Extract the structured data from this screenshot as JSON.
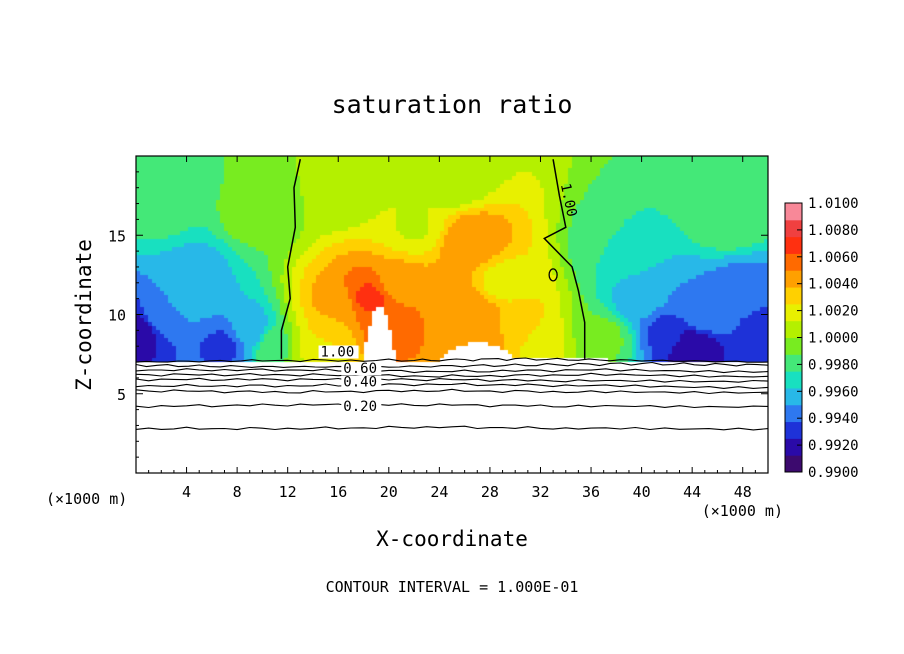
{
  "chart_data": {
    "type": "heatmap",
    "title": "saturation ratio",
    "xlabel": "X-coordinate",
    "ylabel": "Z-coordinate",
    "x_unit_left": "(×1000 m)",
    "x_unit_right": "(×1000 m)",
    "footer": "CONTOUR INTERVAL = 1.000E-01",
    "xlim": [
      0,
      50
    ],
    "ylim": [
      0,
      20
    ],
    "x_ticks": [
      4,
      8,
      12,
      16,
      20,
      24,
      28,
      32,
      36,
      40,
      44,
      48
    ],
    "y_ticks": [
      5,
      10,
      15
    ],
    "colorbar": {
      "range": [
        0.99,
        1.01
      ],
      "labels": [
        "1.0100",
        "1.0080",
        "1.0060",
        "1.0040",
        "1.0020",
        "1.0000",
        "0.9980",
        "0.9960",
        "0.9940",
        "0.9920",
        "0.9900"
      ],
      "colors": [
        "#3c0a6e",
        "#2a0aa8",
        "#1e32d8",
        "#2e78f0",
        "#28b8e8",
        "#18e0c0",
        "#44e878",
        "#78ec20",
        "#b4f000",
        "#e8f000",
        "#ffd000",
        "#ffa000",
        "#ff6a00",
        "#ff3010",
        "#f04040",
        "#f88898"
      ]
    },
    "contour_labels": [
      "1.00",
      "0.60",
      "0.40",
      "0.20"
    ],
    "contour_lines": [
      {
        "level": 1.0,
        "points": [
          [
            0,
            7.0
          ],
          [
            10,
            7.1
          ],
          [
            22,
            7.1
          ],
          [
            30,
            7.2
          ],
          [
            40,
            7.1
          ],
          [
            50,
            7.0
          ]
        ]
      },
      {
        "level": 0.9,
        "points": [
          [
            0,
            6.8
          ],
          [
            10,
            6.7
          ],
          [
            20,
            6.7
          ],
          [
            30,
            6.8
          ],
          [
            40,
            6.9
          ],
          [
            50,
            6.8
          ]
        ]
      },
      {
        "level": 0.8,
        "points": [
          [
            0,
            6.5
          ],
          [
            12,
            6.5
          ],
          [
            24,
            6.4
          ],
          [
            36,
            6.5
          ],
          [
            50,
            6.4
          ]
        ]
      },
      {
        "level": 0.7,
        "points": [
          [
            0,
            6.2
          ],
          [
            12,
            6.2
          ],
          [
            24,
            6.1
          ],
          [
            36,
            6.2
          ],
          [
            50,
            6.1
          ]
        ]
      },
      {
        "level": 0.6,
        "points": [
          [
            0,
            5.9
          ],
          [
            12,
            5.9
          ],
          [
            24,
            5.9
          ],
          [
            36,
            5.8
          ],
          [
            50,
            5.8
          ]
        ]
      },
      {
        "level": 0.5,
        "points": [
          [
            0,
            5.5
          ],
          [
            12,
            5.5
          ],
          [
            24,
            5.6
          ],
          [
            36,
            5.5
          ],
          [
            50,
            5.4
          ]
        ]
      },
      {
        "level": 0.4,
        "points": [
          [
            0,
            5.2
          ],
          [
            12,
            5.1
          ],
          [
            24,
            5.2
          ],
          [
            36,
            5.1
          ],
          [
            50,
            5.1
          ]
        ]
      },
      {
        "level": 0.3,
        "points": [
          [
            0,
            4.2
          ],
          [
            12,
            4.3
          ],
          [
            24,
            4.3
          ],
          [
            36,
            4.2
          ],
          [
            50,
            4.2
          ]
        ]
      },
      {
        "level": 0.2,
        "points": [
          [
            0,
            2.8
          ],
          [
            12,
            2.8
          ],
          [
            24,
            2.9
          ],
          [
            36,
            2.8
          ],
          [
            50,
            2.8
          ]
        ]
      }
    ],
    "contour_1_left": [
      [
        11.5,
        7.2
      ],
      [
        11.5,
        9.0
      ],
      [
        12.2,
        11.0
      ],
      [
        12.0,
        13.0
      ],
      [
        12.6,
        15.5
      ],
      [
        12.5,
        18.0
      ],
      [
        13.0,
        19.8
      ]
    ],
    "contour_1_right": [
      [
        35.5,
        7.2
      ],
      [
        35.5,
        9.5
      ],
      [
        35.0,
        11.5
      ],
      [
        34.5,
        13.0
      ],
      [
        32.3,
        14.8
      ],
      [
        34.0,
        15.5
      ],
      [
        33.5,
        17.5
      ],
      [
        33.0,
        19.8
      ]
    ],
    "samples": [
      {
        "x": 0,
        "z": 9.0,
        "v": 0.9915
      },
      {
        "x": 2,
        "z": 10.0,
        "v": 0.9945
      },
      {
        "x": 4,
        "z": 11.0,
        "v": 0.9955
      },
      {
        "x": 5,
        "z": 13.0,
        "v": 0.996
      },
      {
        "x": 7,
        "z": 8.0,
        "v": 0.9935
      },
      {
        "x": 9,
        "z": 9.0,
        "v": 0.9955
      },
      {
        "x": 2,
        "z": 17.0,
        "v": 0.9985
      },
      {
        "x": 9,
        "z": 16.0,
        "v": 0.999
      },
      {
        "x": 16,
        "z": 18.0,
        "v": 1.0001
      },
      {
        "x": 25,
        "z": 18.5,
        "v": 1.0003
      },
      {
        "x": 18.5,
        "z": 11.0,
        "v": 1.0065
      },
      {
        "x": 16,
        "z": 10.5,
        "v": 1.0045
      },
      {
        "x": 15,
        "z": 9.0,
        "v": 1.003
      },
      {
        "x": 20,
        "z": 9.5,
        "v": 1.006
      },
      {
        "x": 21,
        "z": 12.0,
        "v": 1.004
      },
      {
        "x": 26.5,
        "z": 14.5,
        "v": 1.005
      },
      {
        "x": 25,
        "z": 11.0,
        "v": 1.0045
      },
      {
        "x": 27,
        "z": 10.0,
        "v": 1.0045
      },
      {
        "x": 29,
        "z": 12.0,
        "v": 1.002
      },
      {
        "x": 28,
        "z": 8.5,
        "v": 1.004
      },
      {
        "x": 30,
        "z": 9.0,
        "v": 1.0035
      },
      {
        "x": 14,
        "z": 8.0,
        "v": 1.0015
      },
      {
        "x": 32,
        "z": 8.0,
        "v": 1.0015
      },
      {
        "x": 22,
        "z": 15.5,
        "v": 1.0012
      },
      {
        "x": 38,
        "z": 14.0,
        "v": 0.9975
      },
      {
        "x": 40,
        "z": 11.0,
        "v": 0.9955
      },
      {
        "x": 42,
        "z": 9.0,
        "v": 0.9935
      },
      {
        "x": 45,
        "z": 10.0,
        "v": 0.995
      },
      {
        "x": 48,
        "z": 11.5,
        "v": 0.9945
      },
      {
        "x": 50,
        "z": 9.0,
        "v": 0.993
      },
      {
        "x": 44,
        "z": 8.0,
        "v": 0.9915
      },
      {
        "x": 47,
        "z": 16.0,
        "v": 0.9985
      },
      {
        "x": 37,
        "z": 8.5,
        "v": 0.999
      },
      {
        "x": 11,
        "z": 8.0,
        "v": 0.9985
      }
    ],
    "clear_regions": [
      {
        "x": [
          18,
          20.5
        ],
        "zmax": 10.5
      },
      {
        "x": [
          24,
          30
        ],
        "zmax": 8.2
      }
    ]
  }
}
